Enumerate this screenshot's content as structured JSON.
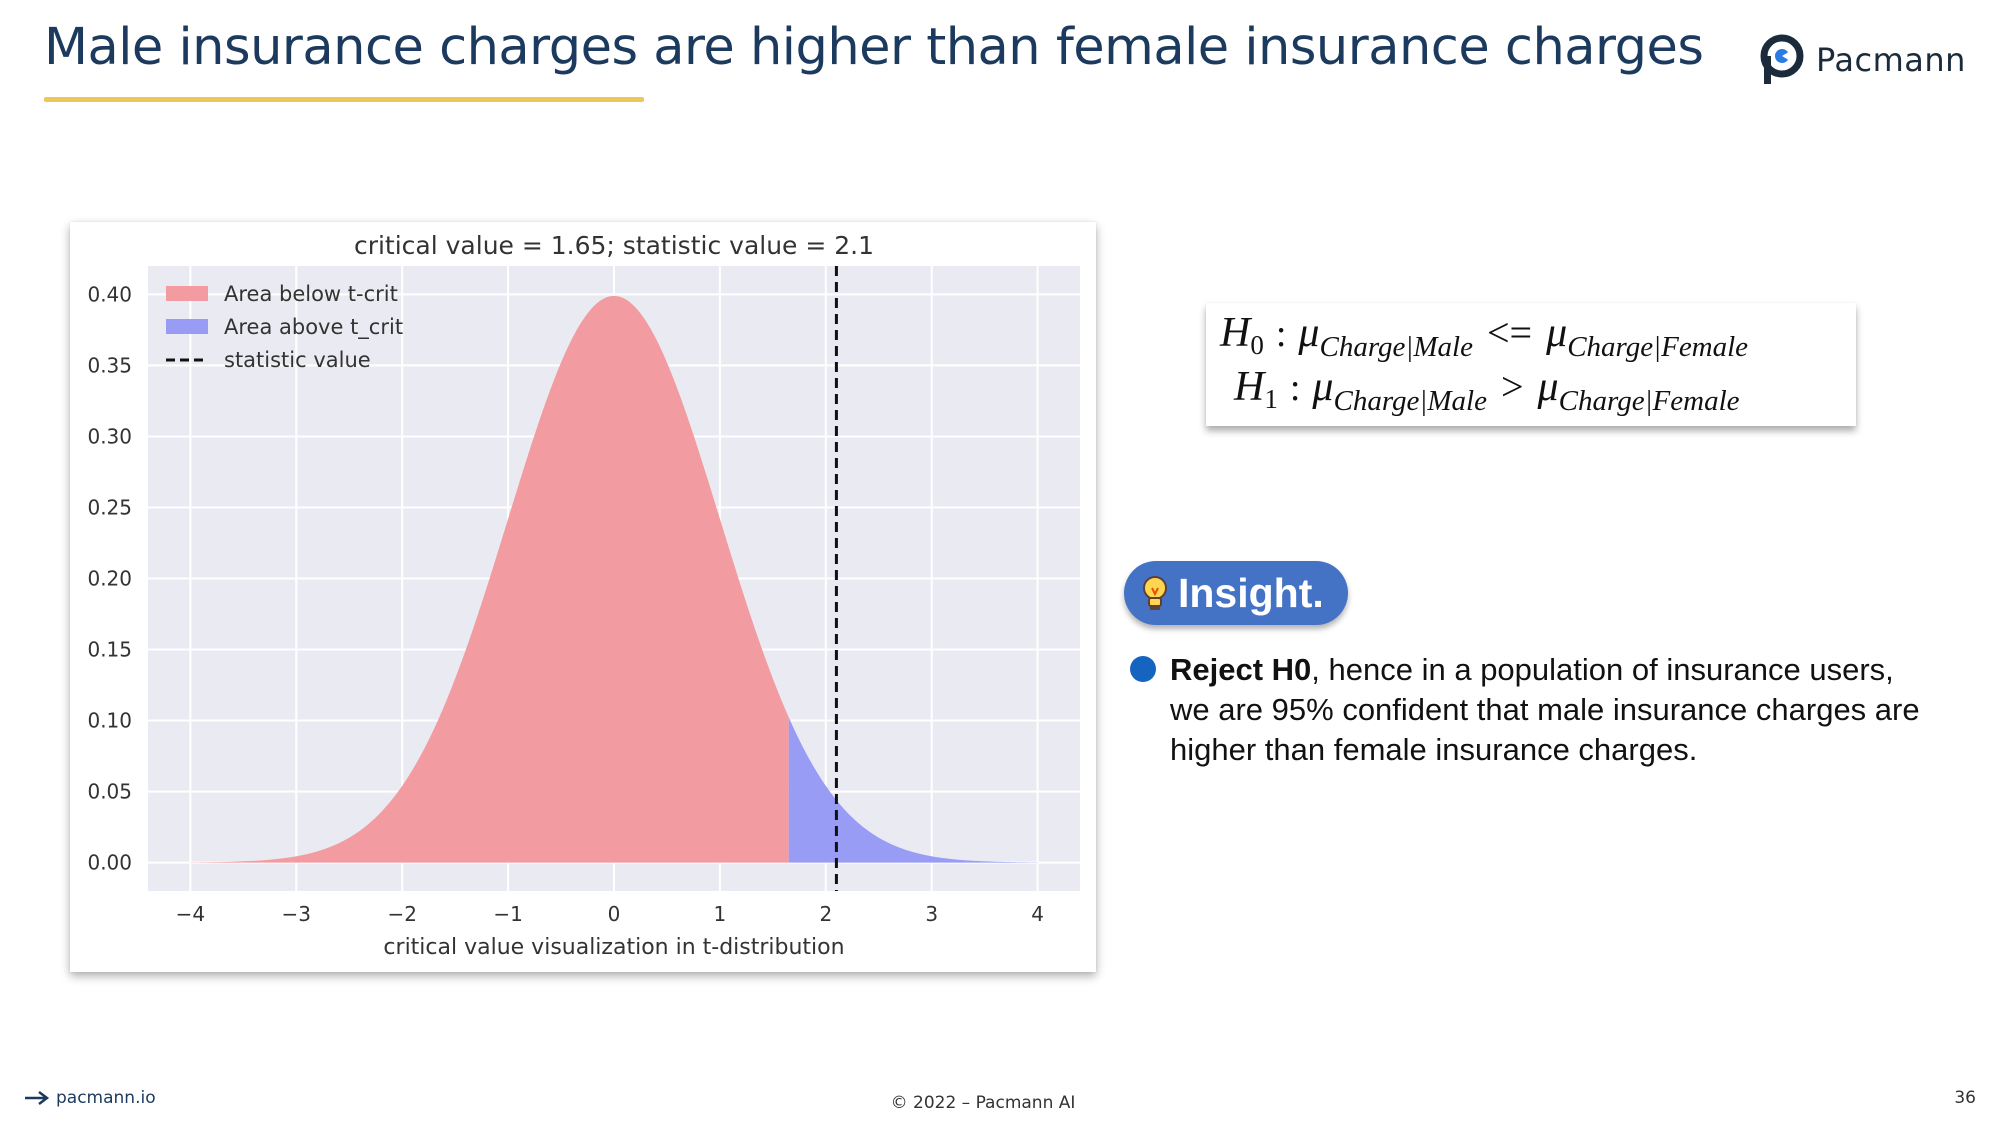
{
  "slide": {
    "title": "Male insurance charges are higher than female insurance charges",
    "brand": "Pacmann",
    "page_number": "36"
  },
  "colors": {
    "title": "#1b3a5e",
    "underline": "#efc658",
    "below_fill": "#f29ba0",
    "above_fill": "#999cf4",
    "plot_bg": "#eaeaf2",
    "insight_pill": "#4472c4",
    "bullet": "#1565c0"
  },
  "chart_data": {
    "type": "area",
    "title": "critical value = 1.65; statistic value = 2.1",
    "xlabel": "critical value visualization in t-distribution",
    "ylabel": "",
    "distribution": "t",
    "critical_value": 1.65,
    "statistic_value": 2.1,
    "xlim": [
      -4.4,
      4.4
    ],
    "ylim": [
      -0.02,
      0.42
    ],
    "xticks": [
      -4,
      -3,
      -2,
      -1,
      0,
      1,
      2,
      3,
      4
    ],
    "xtick_labels": [
      "−4",
      "−3",
      "−2",
      "−1",
      "0",
      "1",
      "2",
      "3",
      "4"
    ],
    "yticks": [
      0.0,
      0.05,
      0.1,
      0.15,
      0.2,
      0.25,
      0.3,
      0.35,
      0.4
    ],
    "ytick_labels": [
      "0.00",
      "0.05",
      "0.10",
      "0.15",
      "0.20",
      "0.25",
      "0.30",
      "0.35",
      "0.40"
    ],
    "x": [
      -4.0,
      -3.5,
      -3.0,
      -2.5,
      -2.0,
      -1.5,
      -1.0,
      -0.5,
      0.0,
      0.5,
      1.0,
      1.5,
      1.65,
      2.0,
      2.1,
      2.5,
      3.0,
      3.5,
      4.0
    ],
    "y": [
      0.0001,
      0.0009,
      0.0044,
      0.0175,
      0.054,
      0.1295,
      0.242,
      0.3521,
      0.3989,
      0.3521,
      0.242,
      0.1295,
      0.1023,
      0.054,
      0.044,
      0.0175,
      0.0044,
      0.0009,
      0.0001
    ],
    "series": [
      {
        "name": "Area below t-crit",
        "x_range": [
          -4,
          1.65
        ],
        "color": "#f29ba0"
      },
      {
        "name": "Area above t_crit",
        "x_range": [
          1.65,
          4
        ],
        "color": "#999cf4"
      }
    ],
    "vline": {
      "name": "statistic value",
      "x": 2.1,
      "style": "dashed",
      "color": "#111111"
    },
    "legend": {
      "placement": "top-left",
      "entries": [
        "Area below t-crit",
        "Area above t_crit",
        "statistic value"
      ]
    },
    "grid": true
  },
  "hypotheses": {
    "h0": {
      "label": "H",
      "sub": "0",
      "colon": ":",
      "lhs": "μ",
      "lhs_sub": "Charge|Male",
      "op": "<=",
      "rhs": "μ",
      "rhs_sub": "Charge|Female"
    },
    "h1": {
      "label": "H",
      "sub": "1",
      "colon": ":",
      "lhs": "μ",
      "lhs_sub": "Charge|Male",
      "op": ">",
      "rhs": "μ",
      "rhs_sub": "Charge|Female"
    }
  },
  "insight": {
    "label": "Insight.",
    "icon": "lightbulb-icon",
    "bold": "Reject H0",
    "text": ", hence in a population of insurance users, we are 95% confident that male insurance charges are higher than female insurance charges."
  },
  "footer": {
    "website": "pacmann.io",
    "copyright": "© 2022 – Pacmann AI"
  }
}
